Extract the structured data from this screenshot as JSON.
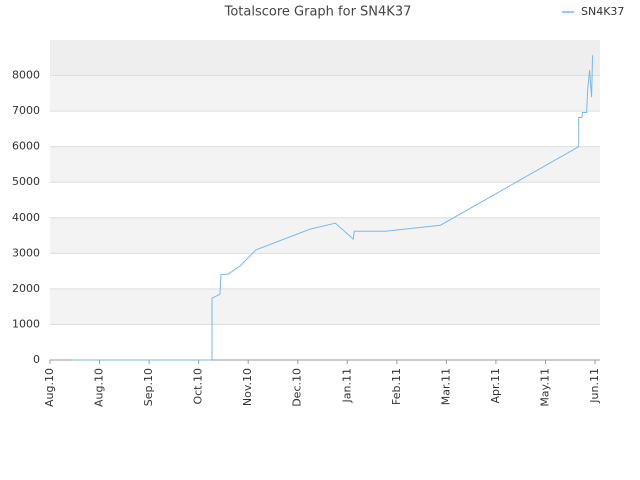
{
  "chart_data": {
    "type": "line",
    "title": "Totalscore Graph for SN4K37",
    "series": [
      {
        "name": "SN4K37",
        "color": "#7ab8ea",
        "x": [
          0.46,
          3.27,
          3.27,
          3.43,
          3.45,
          3.6,
          3.84,
          4.16,
          5.25,
          5.76,
          6.12,
          6.14,
          6.77,
          7.88,
          10.67,
          10.67,
          10.73,
          10.75,
          10.83,
          10.85,
          10.89,
          10.93,
          10.95
        ],
        "values": [
          0,
          0,
          1740,
          1850,
          2400,
          2420,
          2650,
          3100,
          3680,
          3850,
          3400,
          3620,
          3620,
          3790,
          6000,
          6820,
          6820,
          6960,
          6960,
          7580,
          8150,
          7390,
          8570
        ]
      }
    ],
    "xlim": [
      0,
      11.1
    ],
    "xticks": [
      {
        "value": 0,
        "label": "Aug.10"
      },
      {
        "value": 1,
        "label": "Aug.10"
      },
      {
        "value": 2,
        "label": "Sep.10"
      },
      {
        "value": 3,
        "label": "Oct.10"
      },
      {
        "value": 4,
        "label": "Nov.10"
      },
      {
        "value": 5,
        "label": "Dec.10"
      },
      {
        "value": 6,
        "label": "Jan.11"
      },
      {
        "value": 7,
        "label": "Feb.11"
      },
      {
        "value": 8,
        "label": "Mar.11"
      },
      {
        "value": 9,
        "label": "Apr.11"
      },
      {
        "value": 10,
        "label": "May.11"
      },
      {
        "value": 11,
        "label": "Jun.11"
      }
    ],
    "ylim": [
      0,
      9000
    ],
    "yticks": [
      0,
      1000,
      2000,
      3000,
      4000,
      5000,
      6000,
      7000,
      8000
    ],
    "grid": true,
    "legend": "top-right"
  }
}
